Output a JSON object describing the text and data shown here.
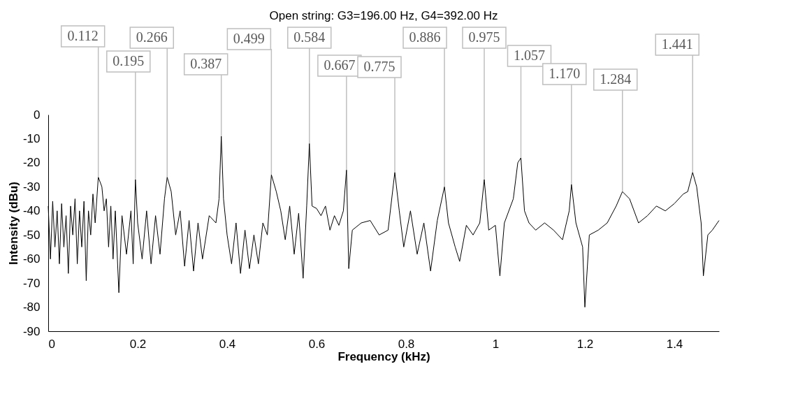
{
  "chart_data": {
    "type": "line",
    "title": "Open string: G3=196.00 Hz, G4=392.00 Hz",
    "xlabel": "Frequency (kHz)",
    "ylabel": "Intensity (dBu)",
    "color": "#000000",
    "xlim": [
      0,
      1.5
    ],
    "xticks": [
      0,
      0.2,
      0.4,
      0.6,
      0.8,
      1,
      1.2,
      1.4
    ],
    "ylim": [
      -90,
      0
    ],
    "yticks": [
      0,
      -10,
      -20,
      -30,
      -40,
      -50,
      -60,
      -70,
      -80,
      -90
    ],
    "grid": false,
    "x": [
      0.0,
      0.005,
      0.01,
      0.015,
      0.02,
      0.025,
      0.03,
      0.035,
      0.04,
      0.045,
      0.05,
      0.055,
      0.06,
      0.065,
      0.07,
      0.075,
      0.08,
      0.085,
      0.09,
      0.095,
      0.1,
      0.105,
      0.112,
      0.12,
      0.125,
      0.13,
      0.135,
      0.14,
      0.145,
      0.15,
      0.158,
      0.165,
      0.175,
      0.185,
      0.19,
      0.195,
      0.2,
      0.21,
      0.22,
      0.23,
      0.24,
      0.25,
      0.26,
      0.266,
      0.275,
      0.285,
      0.295,
      0.305,
      0.315,
      0.325,
      0.335,
      0.345,
      0.36,
      0.375,
      0.382,
      0.387,
      0.392,
      0.4,
      0.41,
      0.42,
      0.43,
      0.44,
      0.45,
      0.46,
      0.47,
      0.48,
      0.49,
      0.499,
      0.51,
      0.52,
      0.53,
      0.54,
      0.55,
      0.56,
      0.57,
      0.578,
      0.584,
      0.59,
      0.6,
      0.61,
      0.62,
      0.63,
      0.64,
      0.65,
      0.66,
      0.667,
      0.672,
      0.68,
      0.7,
      0.72,
      0.74,
      0.76,
      0.775,
      0.785,
      0.795,
      0.81,
      0.825,
      0.84,
      0.855,
      0.87,
      0.886,
      0.895,
      0.91,
      0.92,
      0.935,
      0.95,
      0.965,
      0.975,
      0.985,
      1.0,
      1.01,
      1.02,
      1.04,
      1.05,
      1.057,
      1.065,
      1.075,
      1.09,
      1.11,
      1.13,
      1.15,
      1.165,
      1.17,
      1.18,
      1.195,
      1.2,
      1.21,
      1.23,
      1.25,
      1.27,
      1.284,
      1.3,
      1.32,
      1.34,
      1.36,
      1.38,
      1.4,
      1.42,
      1.43,
      1.441,
      1.45,
      1.46,
      1.465,
      1.475,
      1.485,
      1.5
    ],
    "values": [
      -38,
      -60,
      -36,
      -55,
      -40,
      -62,
      -37,
      -55,
      -42,
      -66,
      -38,
      -50,
      -35,
      -62,
      -40,
      -55,
      -36,
      -69,
      -40,
      -50,
      -33,
      -45,
      -26,
      -30,
      -40,
      -35,
      -55,
      -38,
      -60,
      -40,
      -74,
      -42,
      -58,
      -40,
      -62,
      -27,
      -45,
      -60,
      -40,
      -62,
      -42,
      -58,
      -35,
      -26,
      -32,
      -50,
      -40,
      -63,
      -44,
      -65,
      -45,
      -60,
      -42,
      -45,
      -35,
      -9,
      -35,
      -50,
      -62,
      -45,
      -66,
      -48,
      -64,
      -50,
      -62,
      -45,
      -50,
      -25,
      -32,
      -40,
      -52,
      -38,
      -58,
      -41,
      -68,
      -38,
      -12,
      -38,
      -39,
      -42,
      -38,
      -48,
      -42,
      -46,
      -40,
      -23,
      -64,
      -48,
      -45,
      -44,
      -50,
      -48,
      -24,
      -40,
      -55,
      -40,
      -58,
      -45,
      -65,
      -44,
      -30,
      -45,
      -55,
      -61,
      -46,
      -50,
      -45,
      -27,
      -48,
      -46,
      -67,
      -45,
      -35,
      -20,
      -18,
      -40,
      -45,
      -48,
      -45,
      -48,
      -52,
      -40,
      -29,
      -45,
      -55,
      -80,
      -50,
      -48,
      -45,
      -38,
      -32,
      -35,
      -45,
      -42,
      -38,
      -40,
      -37,
      -33,
      -32,
      -24,
      -30,
      -45,
      -67,
      -50,
      -48,
      -44
    ],
    "annotations": [
      {
        "text": "0.112",
        "x": 0.112,
        "y": -26
      },
      {
        "text": "0.195",
        "x": 0.195,
        "y": -27
      },
      {
        "text": "0.266",
        "x": 0.266,
        "y": -26
      },
      {
        "text": "0.387",
        "x": 0.387,
        "y": -9
      },
      {
        "text": "0.499",
        "x": 0.499,
        "y": -25
      },
      {
        "text": "0.584",
        "x": 0.584,
        "y": -12
      },
      {
        "text": "0.667",
        "x": 0.667,
        "y": -23
      },
      {
        "text": "0.775",
        "x": 0.775,
        "y": -24
      },
      {
        "text": "0.886",
        "x": 0.886,
        "y": -30
      },
      {
        "text": "0.975",
        "x": 0.975,
        "y": -27
      },
      {
        "text": "1.057",
        "x": 1.057,
        "y": -18
      },
      {
        "text": "1.170",
        "x": 1.17,
        "y": -29
      },
      {
        "text": "1.284",
        "x": 1.284,
        "y": -32
      },
      {
        "text": "1.441",
        "x": 1.441,
        "y": -24
      }
    ]
  }
}
